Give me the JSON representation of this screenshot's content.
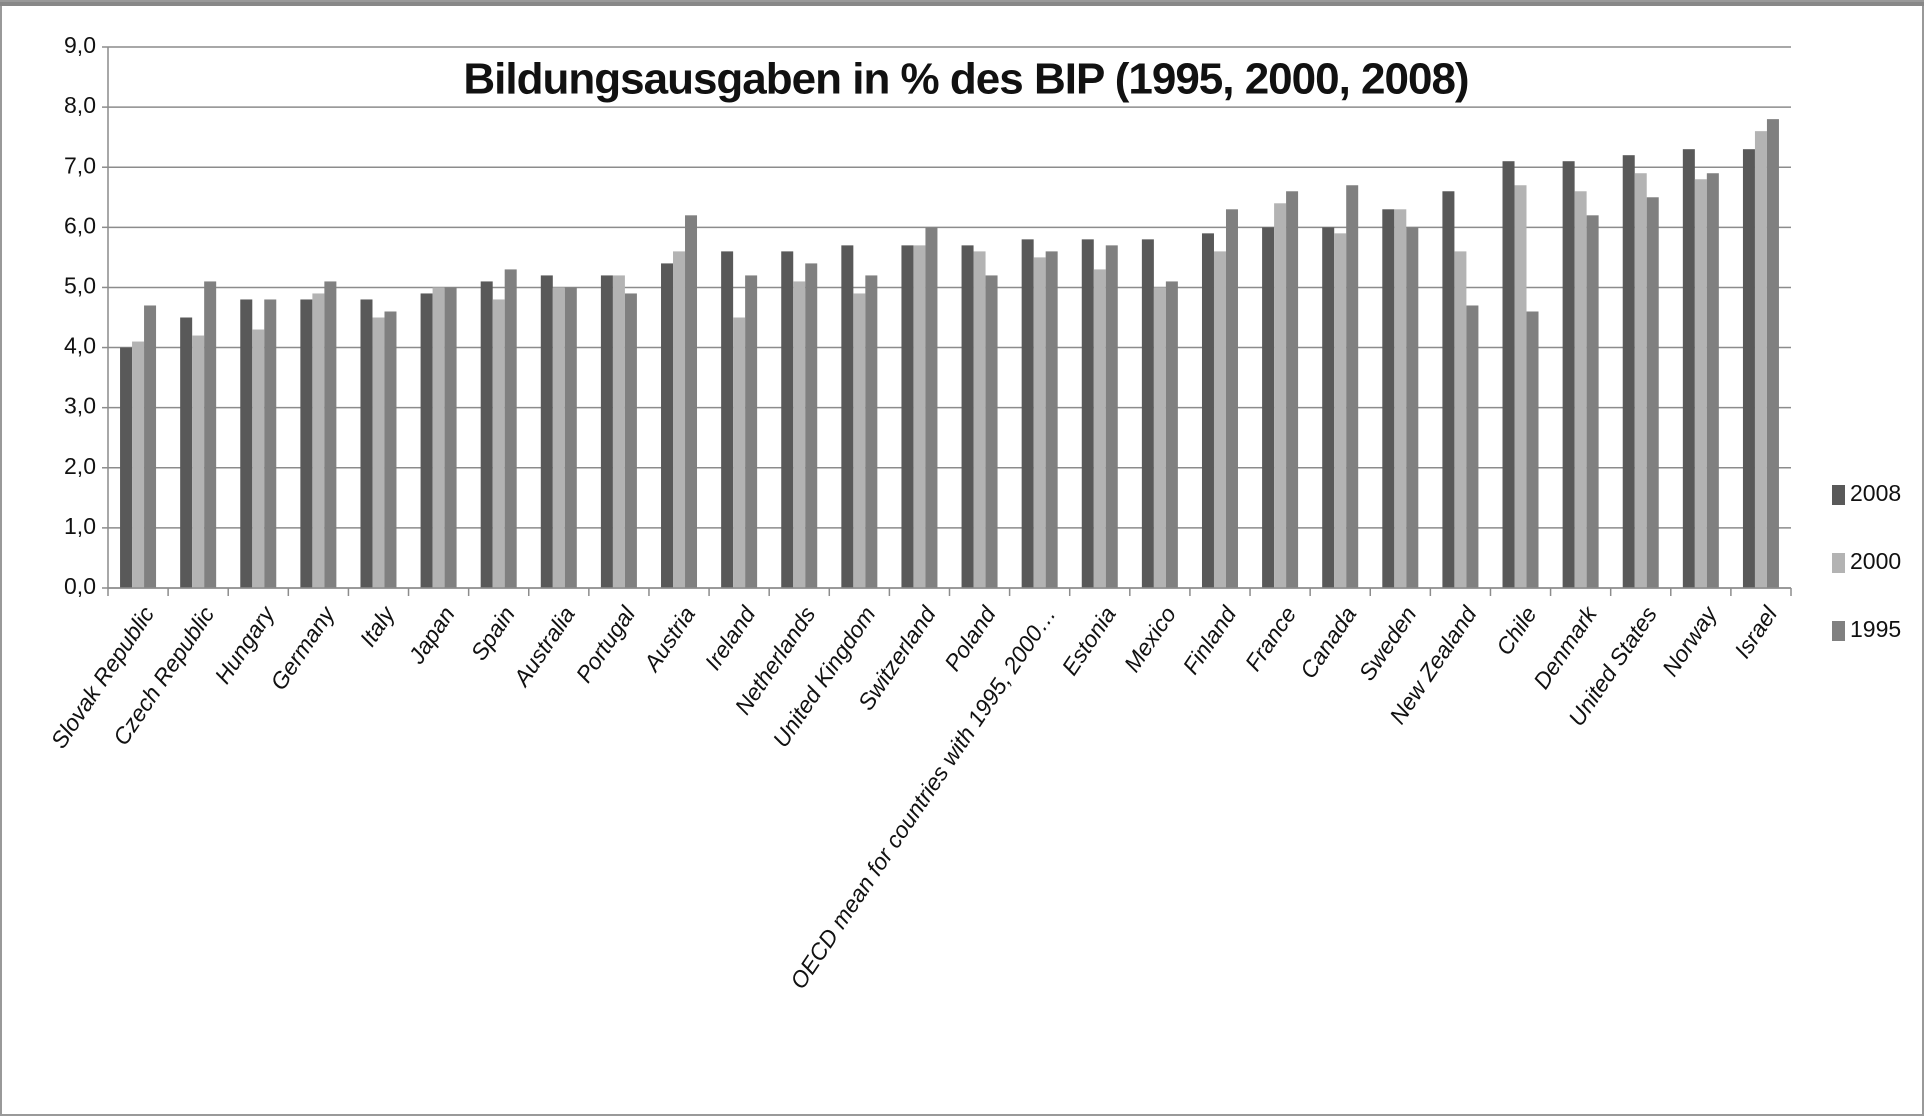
{
  "chart_data": {
    "type": "bar",
    "title": "Bildungsausgaben in % des BIP (1995, 2000, 2008)",
    "categories": [
      "Slovak Republic",
      "Czech Republic",
      "Hungary",
      "Germany",
      "Italy",
      "Japan",
      "Spain",
      "Australia",
      "Portugal",
      "Austria",
      "Ireland",
      "Netherlands",
      "United Kingdom",
      "Switzerland",
      "Poland",
      "OECD mean for countries with 1995, 2000…",
      "Estonia",
      "Mexico",
      "Finland",
      "France",
      "Canada",
      "Sweden",
      "New Zealand",
      "Chile",
      "Denmark",
      "United States",
      "Norway",
      "Israel"
    ],
    "series": [
      {
        "name": "2008",
        "color": "#595959",
        "values": [
          4.0,
          4.5,
          4.8,
          4.8,
          4.8,
          4.9,
          5.1,
          5.2,
          5.2,
          5.4,
          5.6,
          5.6,
          5.7,
          5.7,
          5.7,
          5.8,
          5.8,
          5.8,
          5.9,
          6.0,
          6.0,
          6.3,
          6.6,
          7.1,
          7.1,
          7.2,
          7.3,
          7.3
        ]
      },
      {
        "name": "2000",
        "color": "#b3b3b3",
        "values": [
          4.1,
          4.2,
          4.3,
          4.9,
          4.5,
          5.0,
          4.8,
          5.0,
          5.2,
          5.6,
          4.5,
          5.1,
          4.9,
          5.7,
          5.6,
          5.5,
          5.3,
          5.0,
          5.6,
          6.4,
          5.9,
          6.3,
          5.6,
          6.7,
          6.6,
          6.9,
          6.8,
          7.6
        ]
      },
      {
        "name": "1995",
        "color": "#808080",
        "values": [
          4.7,
          5.1,
          4.8,
          5.1,
          4.6,
          5.0,
          5.3,
          5.0,
          4.9,
          6.2,
          5.2,
          5.4,
          5.2,
          6.0,
          5.2,
          5.6,
          5.7,
          5.1,
          6.3,
          6.6,
          6.7,
          6.0,
          4.7,
          4.6,
          6.2,
          6.5,
          6.9,
          7.8
        ]
      }
    ],
    "ylim": [
      0,
      9
    ],
    "yticks": [
      {
        "value": 0,
        "label": "0,0"
      },
      {
        "value": 1,
        "label": "1,0"
      },
      {
        "value": 2,
        "label": "2,0"
      },
      {
        "value": 3,
        "label": "3,0"
      },
      {
        "value": 4,
        "label": "4,0"
      },
      {
        "value": 5,
        "label": "5,0"
      },
      {
        "value": 6,
        "label": "6,0"
      },
      {
        "value": 7,
        "label": "7,0"
      },
      {
        "value": 8,
        "label": "8,0"
      },
      {
        "value": 9,
        "label": "9,0"
      }
    ],
    "grid": true,
    "legend": "right"
  }
}
